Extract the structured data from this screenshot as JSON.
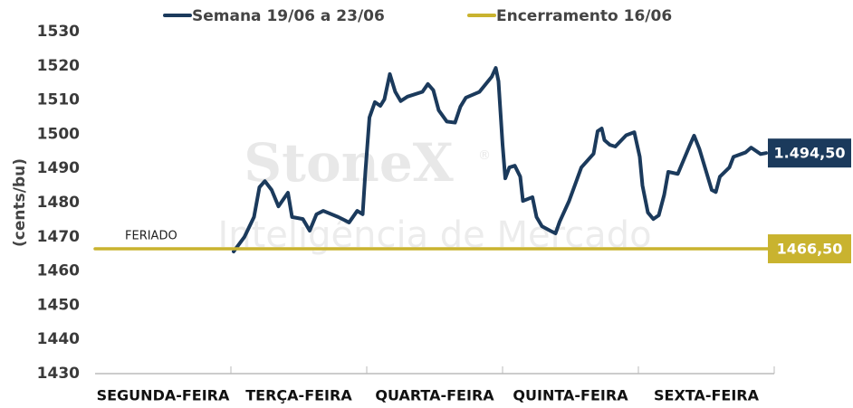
{
  "chart_data": {
    "type": "line",
    "y_label": "(cents/bu)",
    "categories": [
      "SEGUNDA-FEIRA",
      "TERÇA-FEIRA",
      "QUARTA-FEIRA",
      "QUINTA-FEIRA",
      "SEXTA-FEIRA"
    ],
    "xlim": [
      0,
      5
    ],
    "ylim": [
      1430,
      1530
    ],
    "yticks": [
      1430,
      1440,
      1450,
      1460,
      1470,
      1480,
      1490,
      1500,
      1510,
      1520,
      1530
    ],
    "grid": false,
    "legend": "top",
    "annotation": "FERIADO",
    "watermark": [
      "StoneX",
      "®",
      "Inteligência de Mercado"
    ],
    "series": [
      {
        "name": "Semana 19/06 a 23/06",
        "color": "#1b3a5c",
        "end_label": "1.494,50",
        "x": [
          1.02,
          1.1,
          1.17,
          1.21,
          1.25,
          1.3,
          1.35,
          1.42,
          1.45,
          1.53,
          1.58,
          1.63,
          1.68,
          1.79,
          1.87,
          1.93,
          1.97,
          1.99,
          2.02,
          2.06,
          2.1,
          2.13,
          2.17,
          2.21,
          2.25,
          2.3,
          2.41,
          2.45,
          2.49,
          2.53,
          2.59,
          2.65,
          2.69,
          2.73,
          2.83,
          2.92,
          2.95,
          2.97,
          3.0,
          3.02,
          3.05,
          3.09,
          3.13,
          3.15,
          3.22,
          3.25,
          3.29,
          3.35,
          3.39,
          3.42,
          3.49,
          3.58,
          3.67,
          3.7,
          3.73,
          3.75,
          3.79,
          3.83,
          3.91,
          3.97,
          4.01,
          4.03,
          4.07,
          4.11,
          4.15,
          4.19,
          4.22,
          4.29,
          4.38,
          4.41,
          4.45,
          4.49,
          4.54,
          4.57,
          4.6,
          4.67,
          4.7,
          4.79,
          4.83,
          4.9,
          4.94
        ],
        "values": [
          1465.7,
          1470.0,
          1475.8,
          1484.5,
          1486.3,
          1483.7,
          1478.9,
          1482.9,
          1475.8,
          1475.2,
          1471.8,
          1476.6,
          1477.6,
          1475.8,
          1474.2,
          1477.6,
          1476.6,
          1489.0,
          1504.9,
          1509.4,
          1508.3,
          1510.2,
          1517.6,
          1512.4,
          1509.7,
          1511.0,
          1512.4,
          1514.7,
          1512.9,
          1507.0,
          1503.7,
          1503.4,
          1508.1,
          1510.7,
          1512.4,
          1516.8,
          1519.4,
          1515.5,
          1497.0,
          1487.1,
          1490.3,
          1490.8,
          1487.6,
          1480.5,
          1481.6,
          1475.8,
          1473.1,
          1471.8,
          1471.0,
          1474.4,
          1480.5,
          1490.3,
          1494.3,
          1500.9,
          1501.7,
          1498.3,
          1496.9,
          1496.4,
          1499.7,
          1500.6,
          1493.4,
          1485.0,
          1477.1,
          1475.2,
          1476.3,
          1482.3,
          1489.0,
          1488.4,
          1496.9,
          1499.6,
          1495.6,
          1490.3,
          1483.7,
          1483.1,
          1487.6,
          1490.3,
          1493.4,
          1494.7,
          1496.1,
          1494.2,
          1494.5
        ]
      },
      {
        "name": "Encerramento 16/06",
        "color": "#c9b32f",
        "end_label": "1466,50",
        "x": [
          0,
          5
        ],
        "values": [
          1466.5,
          1466.5
        ]
      }
    ]
  }
}
